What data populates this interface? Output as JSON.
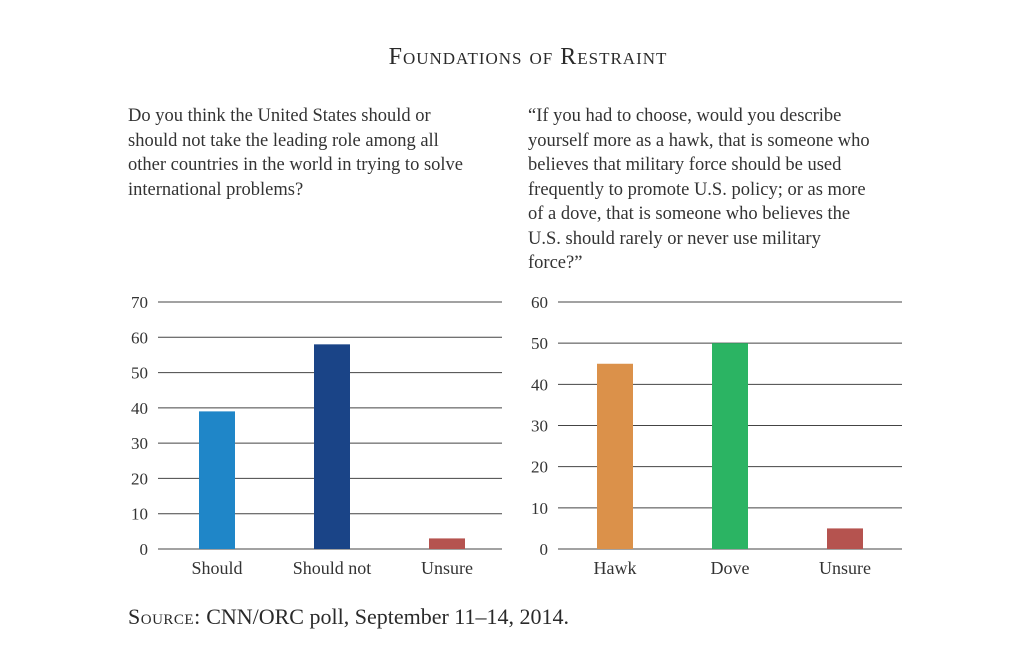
{
  "title": "Foundations of Restraint",
  "source": {
    "prefix": "Source:",
    "text": "CNN/ORC poll, September 11–14, 2014."
  },
  "chart_data": [
    {
      "type": "bar",
      "question": "Do you think the United States should or should not take the leading role among all other countries in the world in trying to solve international problems?",
      "categories": [
        "Should",
        "Should not",
        "Unsure"
      ],
      "values": [
        39,
        58,
        3
      ],
      "colors": [
        "#1f86c8",
        "#1a4487",
        "#b5534f"
      ],
      "ylim": [
        0,
        70
      ],
      "yticks": [
        0,
        10,
        20,
        30,
        40,
        50,
        60,
        70
      ],
      "grid": true,
      "xlabel": "",
      "ylabel": ""
    },
    {
      "type": "bar",
      "question": "“If you had to choose, would you describe yourself more as a hawk, that is someone who believes that military force should be used frequently to promote U.S. policy; or as more of a dove, that is someone who believes the U.S. should rarely or never use military force?”",
      "categories": [
        "Hawk",
        "Dove",
        "Unsure"
      ],
      "values": [
        45,
        50,
        5
      ],
      "colors": [
        "#db914a",
        "#2bb463",
        "#b5534f"
      ],
      "ylim": [
        0,
        60
      ],
      "yticks": [
        0,
        10,
        20,
        30,
        40,
        50,
        60
      ],
      "grid": true,
      "xlabel": "",
      "ylabel": ""
    }
  ]
}
